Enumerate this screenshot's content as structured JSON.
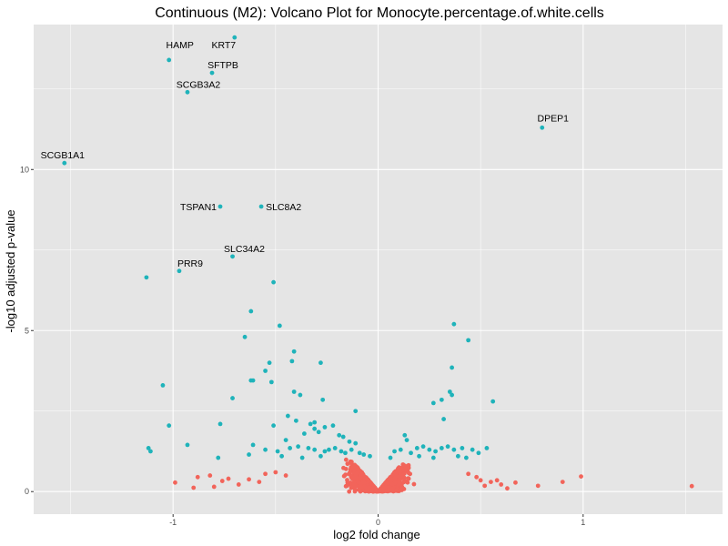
{
  "chart_data": {
    "type": "scatter",
    "title": "Continuous (M2): Volcano Plot for Monocyte.percentage.of.white.cells",
    "xlabel": "log2 fold change",
    "ylabel": "-log10 adjusted p-value",
    "xlim": [
      -1.68,
      1.68
    ],
    "ylim": [
      -0.7,
      14.5
    ],
    "x_ticks": [
      -1,
      0,
      1
    ],
    "x_tick_labels": [
      "-1",
      "0",
      "1"
    ],
    "y_ticks": [
      0,
      5,
      10
    ],
    "y_tick_labels": [
      "0",
      "5",
      "10"
    ],
    "grid": true,
    "legend": "none",
    "colors": {
      "significant": "#1fb3ba",
      "not_significant": "#f2645a",
      "panel": "#e5e5e5",
      "grid": "#ffffff"
    },
    "labeled_points": [
      {
        "gene": "KRT7",
        "x": -0.7,
        "y": 14.1
      },
      {
        "gene": "HAMP",
        "x": -1.02,
        "y": 13.4
      },
      {
        "gene": "SFTPB",
        "x": -0.81,
        "y": 13.0
      },
      {
        "gene": "SCGB3A2",
        "x": -0.93,
        "y": 12.4
      },
      {
        "gene": "DPEP1",
        "x": 0.8,
        "y": 11.3
      },
      {
        "gene": "SCGB1A1",
        "x": -1.53,
        "y": 10.2
      },
      {
        "gene": "TSPAN1",
        "x": -0.77,
        "y": 8.85
      },
      {
        "gene": "SLC8A2",
        "x": -0.57,
        "y": 8.85
      },
      {
        "gene": "SLC34A2",
        "x": -0.71,
        "y": 7.3
      },
      {
        "gene": "PRR9",
        "x": -0.97,
        "y": 6.85
      }
    ],
    "significant_points": [
      [
        -1.13,
        6.65
      ],
      [
        -0.51,
        6.5
      ],
      [
        -0.62,
        5.6
      ],
      [
        -0.48,
        5.15
      ],
      [
        0.37,
        5.2
      ],
      [
        0.44,
        4.7
      ],
      [
        -0.65,
        4.8
      ],
      [
        -0.41,
        4.35
      ],
      [
        -0.42,
        4.05
      ],
      [
        -0.53,
        4.0
      ],
      [
        -0.55,
        3.75
      ],
      [
        0.36,
        3.85
      ],
      [
        -0.61,
        3.45
      ],
      [
        -0.62,
        3.45
      ],
      [
        -0.52,
        3.4
      ],
      [
        -0.28,
        4.0
      ],
      [
        -1.05,
        3.3
      ],
      [
        -0.41,
        3.1
      ],
      [
        -0.38,
        3.0
      ],
      [
        0.35,
        3.1
      ],
      [
        0.36,
        3.0
      ],
      [
        -0.71,
        2.9
      ],
      [
        -0.27,
        2.85
      ],
      [
        0.31,
        2.85
      ],
      [
        0.27,
        2.75
      ],
      [
        0.56,
        2.8
      ],
      [
        -0.11,
        2.5
      ],
      [
        0.32,
        2.25
      ],
      [
        -1.02,
        2.05
      ],
      [
        -0.77,
        2.1
      ],
      [
        -0.44,
        2.35
      ],
      [
        -0.4,
        2.2
      ],
      [
        -0.33,
        2.1
      ],
      [
        -0.31,
        2.15
      ],
      [
        -0.26,
        2.0
      ],
      [
        -0.22,
        2.05
      ],
      [
        -0.51,
        2.05
      ],
      [
        -0.31,
        1.95
      ],
      [
        -0.29,
        1.85
      ],
      [
        -0.36,
        1.8
      ],
      [
        -0.19,
        1.75
      ],
      [
        -0.17,
        1.7
      ],
      [
        -0.14,
        1.55
      ],
      [
        -0.11,
        1.5
      ],
      [
        -0.45,
        1.6
      ],
      [
        0.13,
        1.75
      ],
      [
        0.14,
        1.6
      ],
      [
        -0.93,
        1.45
      ],
      [
        -0.61,
        1.45
      ],
      [
        -0.55,
        1.3
      ],
      [
        -0.49,
        1.25
      ],
      [
        -0.43,
        1.35
      ],
      [
        -0.39,
        1.4
      ],
      [
        -0.34,
        1.35
      ],
      [
        -0.31,
        1.3
      ],
      [
        -0.26,
        1.25
      ],
      [
        -0.24,
        1.3
      ],
      [
        -0.21,
        1.35
      ],
      [
        -0.18,
        1.25
      ],
      [
        -0.16,
        1.2
      ],
      [
        -0.13,
        1.3
      ],
      [
        -0.09,
        1.2
      ],
      [
        -0.07,
        1.15
      ],
      [
        -0.04,
        1.1
      ],
      [
        0.08,
        1.25
      ],
      [
        0.11,
        1.3
      ],
      [
        0.16,
        1.2
      ],
      [
        0.19,
        1.35
      ],
      [
        0.22,
        1.4
      ],
      [
        0.25,
        1.3
      ],
      [
        0.28,
        1.25
      ],
      [
        0.31,
        1.35
      ],
      [
        0.34,
        1.4
      ],
      [
        0.37,
        1.3
      ],
      [
        0.41,
        1.35
      ],
      [
        0.46,
        1.3
      ],
      [
        0.49,
        1.2
      ],
      [
        0.53,
        1.35
      ],
      [
        -1.12,
        1.35
      ],
      [
        -1.11,
        1.25
      ],
      [
        -0.78,
        1.05
      ],
      [
        -0.63,
        1.15
      ],
      [
        -0.47,
        1.1
      ],
      [
        -0.37,
        1.05
      ],
      [
        -0.28,
        1.1
      ],
      [
        0.06,
        1.05
      ],
      [
        0.2,
        1.1
      ],
      [
        0.27,
        1.05
      ],
      [
        0.39,
        1.1
      ],
      [
        0.43,
        1.05
      ]
    ]
  }
}
